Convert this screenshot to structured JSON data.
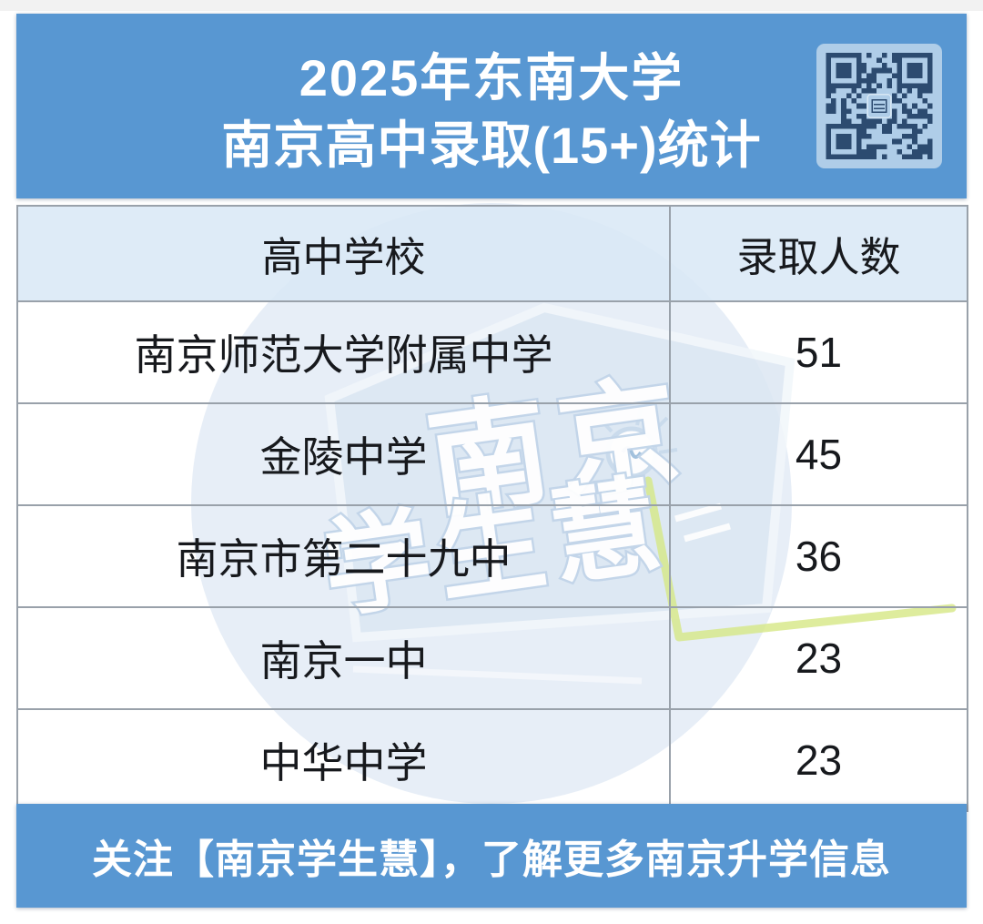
{
  "header": {
    "title_line1": "2025年东南大学",
    "title_line2": "南京高中录取(15+)统计"
  },
  "table": {
    "columns": [
      "高中学校",
      "录取人数"
    ],
    "rows": [
      {
        "school": "南京师范大学附属中学",
        "count": "51"
      },
      {
        "school": "金陵中学",
        "count": "45"
      },
      {
        "school": "南京市第二十九中",
        "count": "36"
      },
      {
        "school": "南京一中",
        "count": "23"
      },
      {
        "school": "中华中学",
        "count": "23"
      }
    ]
  },
  "footer": {
    "text": "关注【南京学生慧】，了解更多南京升学信息"
  },
  "watermark": {
    "line1": "南京",
    "line2": "学生慧"
  },
  "icons": {
    "qr": "qr-code",
    "lightbulb": "lightbulb-icon"
  },
  "colors": {
    "primary_blue": "#5897D2",
    "table_header_bg": "#D9E8F5",
    "border_gray": "#99A1AA",
    "text_dark": "#17191D",
    "qr_bg": "#AFCDE8",
    "qr_dark": "#2C4B70",
    "watermark_circle": "#E7EEF7",
    "watermark_shape": "#DCE7F3",
    "doodle_green": "#D6E784"
  },
  "chart_data": {
    "type": "table",
    "title": "2025年东南大学 南京高中录取(15+)统计",
    "columns": [
      "高中学校",
      "录取人数"
    ],
    "rows": [
      [
        "南京师范大学附属中学",
        51
      ],
      [
        "金陵中学",
        45
      ],
      [
        "南京市第二十九中",
        36
      ],
      [
        "南京一中",
        23
      ],
      [
        "中华中学",
        23
      ]
    ],
    "footer_note": "关注【南京学生慧】，了解更多南京升学信息"
  }
}
